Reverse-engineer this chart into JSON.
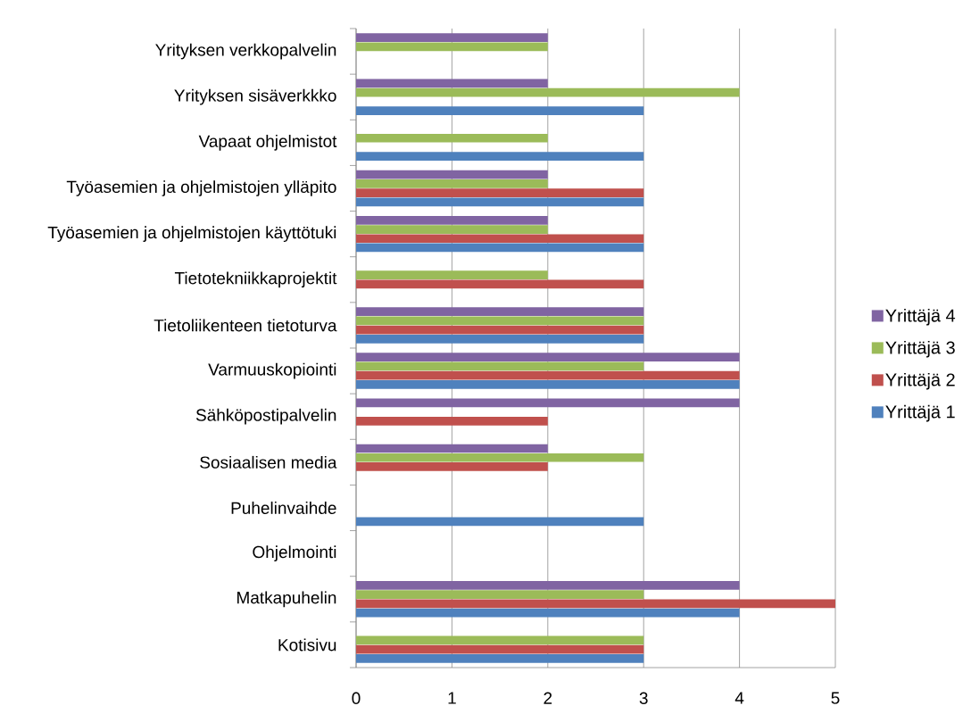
{
  "chart_data": {
    "type": "bar",
    "orientation": "horizontal",
    "categories": [
      "Yrityksen verkkopalvelin",
      "Yrityksen sisäverkkko",
      "Vapaat ohjelmistot",
      "Työasemien ja ohjelmistojen ylläpito",
      "Työasemien ja ohjelmistojen käyttötuki",
      "Tietotekniikkaprojektit",
      "Tietoliikenteen tietoturva",
      "Varmuuskopiointi",
      "Sähköpostipalvelin",
      "Sosiaalisen media",
      "Puhelinvaihde",
      "Ohjelmointi",
      "Matkapuhelin",
      "Kotisivu"
    ],
    "series": [
      {
        "name": "Yrittäjä 1",
        "color": "#4f81bd",
        "values": [
          null,
          3,
          3,
          3,
          3,
          null,
          3,
          4,
          null,
          null,
          3,
          null,
          4,
          3
        ]
      },
      {
        "name": "Yrittäjä 2",
        "color": "#c0504d",
        "values": [
          null,
          null,
          null,
          3,
          3,
          3,
          3,
          4,
          2,
          2,
          null,
          null,
          5,
          3
        ]
      },
      {
        "name": "Yrittäjä 3",
        "color": "#9bbb59",
        "values": [
          2,
          4,
          2,
          2,
          2,
          2,
          3,
          3,
          null,
          3,
          null,
          null,
          3,
          3
        ]
      },
      {
        "name": "Yrittäjä 4",
        "color": "#8064a2",
        "values": [
          2,
          2,
          null,
          2,
          2,
          null,
          3,
          4,
          4,
          2,
          null,
          null,
          4,
          null
        ]
      }
    ],
    "xlim": [
      0,
      5
    ],
    "xticks": [
      0,
      1,
      2,
      3,
      4,
      5
    ],
    "grid": "x",
    "legend": "right"
  }
}
